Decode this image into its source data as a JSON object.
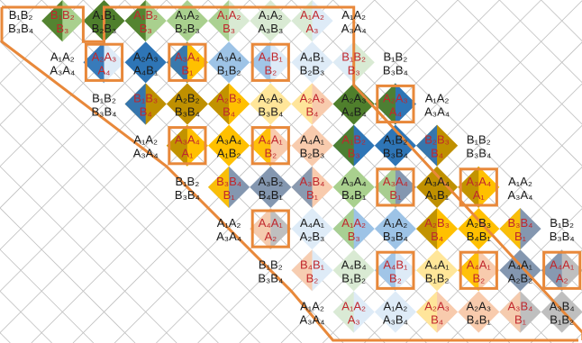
{
  "colors": {
    "black_text": "#1a1a1a",
    "red_text": "#c0272d",
    "highlight_box": "#e8883a",
    "grid_line": "#bfbfbf",
    "fills": {
      "dark_green": "#4f7f2c",
      "light_green": "#a9d08e",
      "pale_green": "#d9ead3",
      "dark_blue": "#2e75b6",
      "light_blue": "#9dc3e6",
      "pale_blue": "#deebf7",
      "olive": "#bf9000",
      "gold": "#ffc000",
      "pale_yellow": "#ffe699",
      "slate": "#8497b0",
      "salmon": "#f8cbad",
      "gray": "#bfbfbf"
    }
  },
  "cells": [
    {
      "c": 0,
      "r": 0,
      "t": "B₁B₂",
      "b": "B₃B₄",
      "tc": "k",
      "bc": "k"
    },
    {
      "c": 1,
      "r": 0,
      "t": "B₁B₂",
      "b": "B₃",
      "tc": "r",
      "bc": "r",
      "f": "light_green",
      "g": "dark_green"
    },
    {
      "c": 2,
      "r": 0,
      "t": "A₁B₁",
      "b": "B₂B₃",
      "tc": "k",
      "bc": "k",
      "f": "dark_green"
    },
    {
      "c": 3,
      "r": 0,
      "t": "A₁B₂",
      "b": "B₃",
      "tc": "r",
      "bc": "r",
      "f": "light_green",
      "g": "dark_green"
    },
    {
      "c": 4,
      "r": 0,
      "t": "A₁A₂",
      "b": "B₂B₃",
      "tc": "k",
      "bc": "k",
      "f": "light_green"
    },
    {
      "c": 5,
      "r": 0,
      "t": "A₁A₂",
      "b": "B₃",
      "tc": "r",
      "bc": "r",
      "f": "pale_green",
      "g": "light_green"
    },
    {
      "c": 6,
      "r": 0,
      "t": "A₁A₂",
      "b": "A₃B₃",
      "tc": "k",
      "bc": "k",
      "f": "pale_green"
    },
    {
      "c": 7,
      "r": 0,
      "t": "A₁A₂",
      "b": "A₃",
      "tc": "r",
      "bc": "r",
      "f": "pale_blue",
      "g": "pale_green"
    },
    {
      "c": 8,
      "r": 0,
      "t": "A₁A₂",
      "b": "A₃A₄",
      "tc": "k",
      "bc": "k"
    },
    {
      "c": 1,
      "r": 1,
      "t": "A₁A₂",
      "b": "A₃A₄",
      "tc": "k",
      "bc": "k"
    },
    {
      "c": 2,
      "r": 1,
      "t": "A₂A₃",
      "b": "A₄",
      "tc": "r",
      "bc": "r",
      "f": "pale_blue",
      "g": "dark_blue",
      "box": 1
    },
    {
      "c": 3,
      "r": 1,
      "t": "A₂A₃",
      "b": "A₄B₁",
      "tc": "k",
      "bc": "k",
      "f": "dark_blue"
    },
    {
      "c": 4,
      "r": 1,
      "t": "A₃A₄",
      "b": "B₁",
      "tc": "r",
      "bc": "r",
      "f": "gold",
      "g": "dark_blue",
      "box": 1
    },
    {
      "c": 5,
      "r": 1,
      "t": "A₃A₄",
      "b": "B₁B₂",
      "tc": "k",
      "bc": "k",
      "f": "light_blue"
    },
    {
      "c": 6,
      "r": 1,
      "t": "A₄B₁",
      "b": "B₂",
      "tc": "r",
      "bc": "r",
      "f": "pale_blue",
      "g": "light_blue",
      "box": 1
    },
    {
      "c": 7,
      "r": 1,
      "t": "A₄B₁",
      "b": "B₂B₃",
      "tc": "k",
      "bc": "k",
      "f": "pale_blue"
    },
    {
      "c": 8,
      "r": 1,
      "t": "B₁B₂",
      "b": "B₃",
      "tc": "r",
      "bc": "r",
      "f": "pale_green",
      "g": "pale_blue"
    },
    {
      "c": 9,
      "r": 1,
      "t": "B₁B₂",
      "b": "B₃B₄",
      "tc": "k",
      "bc": "k"
    },
    {
      "c": 2,
      "r": 2,
      "t": "B₁B₂",
      "b": "B₃B₄",
      "tc": "k",
      "bc": "k"
    },
    {
      "c": 3,
      "r": 2,
      "t": "B₁B₃",
      "b": "B₄",
      "tc": "r",
      "bc": "r",
      "f": "olive",
      "g": "dark_blue"
    },
    {
      "c": 4,
      "r": 2,
      "t": "A₂B₂",
      "b": "B₃B₄",
      "tc": "k",
      "bc": "k",
      "f": "olive"
    },
    {
      "c": 5,
      "r": 2,
      "t": "A₂B₃",
      "b": "B₄",
      "tc": "r",
      "bc": "r",
      "f": "gold",
      "g": "olive"
    },
    {
      "c": 6,
      "r": 2,
      "t": "A₂A₃",
      "b": "B₃B₄",
      "tc": "k",
      "bc": "k",
      "f": "pale_yellow"
    },
    {
      "c": 7,
      "r": 2,
      "t": "A₂A₃",
      "b": "B₄",
      "tc": "r",
      "bc": "r",
      "f": "salmon",
      "g": "pale_yellow"
    },
    {
      "c": 8,
      "r": 2,
      "t": "A₂A₃",
      "b": "A₄B₄",
      "tc": "k",
      "bc": "k",
      "f": "dark_green"
    },
    {
      "c": 9,
      "r": 2,
      "t": "A₂A₃",
      "b": "A₄",
      "tc": "r",
      "bc": "r",
      "f": "dark_blue",
      "g": "dark_green",
      "box": 1
    },
    {
      "c": 10,
      "r": 2,
      "t": "A₁A₂",
      "b": "A₃A₄",
      "tc": "k",
      "bc": "k"
    },
    {
      "c": 3,
      "r": 3,
      "t": "A₁A₂",
      "b": "A₃A₄",
      "tc": "k",
      "bc": "k"
    },
    {
      "c": 4,
      "r": 3,
      "t": "A₃A₄",
      "b": "A₁",
      "tc": "r",
      "bc": "r",
      "f": "gold",
      "g": "olive",
      "box": 1
    },
    {
      "c": 5,
      "r": 3,
      "t": "A₃A₄",
      "b": "A₁B₂",
      "tc": "k",
      "bc": "k",
      "f": "gold"
    },
    {
      "c": 6,
      "r": 3,
      "t": "A₄A₁",
      "b": "B₂",
      "tc": "r",
      "bc": "r",
      "f": "salmon",
      "g": "gold",
      "box": 1
    },
    {
      "c": 7,
      "r": 3,
      "t": "A₄A₁",
      "b": "B₂B₃",
      "tc": "k",
      "bc": "k",
      "f": "salmon"
    },
    {
      "c": 8,
      "r": 3,
      "t": "A₁B₂",
      "b": "B₃",
      "tc": "r",
      "bc": "r",
      "f": "dark_blue",
      "g": "dark_green"
    },
    {
      "c": 9,
      "r": 3,
      "t": "A₁B₂",
      "b": "B₃B₄",
      "tc": "k",
      "bc": "k",
      "f": "dark_blue"
    },
    {
      "c": 10,
      "r": 3,
      "t": "B₂B₃",
      "b": "B₄",
      "tc": "r",
      "bc": "r",
      "f": "olive",
      "g": "dark_blue"
    },
    {
      "c": 11,
      "r": 3,
      "t": "B₁B₂",
      "b": "B₃B₄",
      "tc": "k",
      "bc": "k"
    },
    {
      "c": 4,
      "r": 4,
      "t": "B₁B₂",
      "b": "B₃B₄",
      "tc": "k",
      "bc": "k"
    },
    {
      "c": 5,
      "r": 4,
      "t": "B₃B₄",
      "b": "B₁",
      "tc": "r",
      "bc": "r",
      "f": "slate",
      "g": "gold"
    },
    {
      "c": 6,
      "r": 4,
      "t": "A₃B₂",
      "b": "B₄B₁",
      "tc": "k",
      "bc": "k",
      "f": "slate"
    },
    {
      "c": 7,
      "r": 4,
      "t": "A₃B₄",
      "b": "B₁",
      "tc": "r",
      "bc": "r",
      "f": "salmon",
      "g": "slate"
    },
    {
      "c": 8,
      "r": 4,
      "t": "A₃A₄",
      "b": "B₄B₁",
      "tc": "k",
      "bc": "k",
      "f": "light_green"
    },
    {
      "c": 9,
      "r": 4,
      "t": "A₃A₄",
      "b": "B₁",
      "tc": "r",
      "bc": "r",
      "f": "slate",
      "g": "light_green",
      "box": 1
    },
    {
      "c": 10,
      "r": 4,
      "t": "A₃A₄",
      "b": "A₁B₁",
      "tc": "k",
      "bc": "k",
      "f": "olive"
    },
    {
      "c": 11,
      "r": 4,
      "t": "A₃A₄",
      "b": "A₁",
      "tc": "r",
      "bc": "r",
      "f": "gold",
      "g": "olive",
      "box": 1
    },
    {
      "c": 12,
      "r": 4,
      "t": "A₁A₂",
      "b": "A₃A₄",
      "tc": "k",
      "bc": "k"
    },
    {
      "c": 5,
      "r": 5,
      "t": "A₁A₂",
      "b": "A₃A₄",
      "tc": "k",
      "bc": "k"
    },
    {
      "c": 6,
      "r": 5,
      "t": "A₄A₁",
      "b": "A₂",
      "tc": "r",
      "bc": "r",
      "f": "gray",
      "g": "salmon",
      "box": 1
    },
    {
      "c": 7,
      "r": 5,
      "t": "A₄A₁",
      "b": "A₂B₃",
      "tc": "k",
      "bc": "k",
      "f": "pale_blue"
    },
    {
      "c": 8,
      "r": 5,
      "t": "A₁A₂",
      "b": "B₃",
      "tc": "r",
      "bc": "r",
      "f": "light_blue",
      "g": "light_green"
    },
    {
      "c": 9,
      "r": 5,
      "t": "A₁A₂",
      "b": "B₃B₄",
      "tc": "k",
      "bc": "k",
      "f": "light_blue"
    },
    {
      "c": 10,
      "r": 5,
      "t": "A₂B₃",
      "b": "B₄",
      "tc": "r",
      "bc": "r",
      "f": "gold",
      "g": "olive"
    },
    {
      "c": 11,
      "r": 5,
      "t": "A₂B₃",
      "b": "B₄B₁",
      "tc": "k",
      "bc": "k",
      "f": "gold"
    },
    {
      "c": 12,
      "r": 5,
      "t": "B₃B₄",
      "b": "B₁",
      "tc": "r",
      "bc": "r",
      "f": "slate",
      "g": "gold"
    },
    {
      "c": 13,
      "r": 5,
      "t": "B₁B₂",
      "b": "B₃B₄",
      "tc": "k",
      "bc": "k"
    },
    {
      "c": 6,
      "r": 6,
      "t": "B₁B₂",
      "b": "B₃B₄",
      "tc": "k",
      "bc": "k"
    },
    {
      "c": 7,
      "r": 6,
      "t": "B₄B₁",
      "b": "B₂",
      "tc": "r",
      "bc": "r",
      "f": "pale_blue",
      "g": "salmon"
    },
    {
      "c": 8,
      "r": 6,
      "t": "A₄B₄",
      "b": "B₁B₂",
      "tc": "k",
      "bc": "k",
      "f": "pale_green"
    },
    {
      "c": 9,
      "r": 6,
      "t": "A₄B₁",
      "b": "B₂",
      "tc": "r",
      "bc": "r",
      "f": "pale_blue",
      "g": "light_blue",
      "box": 1
    },
    {
      "c": 10,
      "r": 6,
      "t": "A₄A₁",
      "b": "B₁B₂",
      "tc": "k",
      "bc": "k",
      "f": "pale_yellow"
    },
    {
      "c": 11,
      "r": 6,
      "t": "A₄A₁",
      "b": "B₂",
      "tc": "r",
      "bc": "r",
      "f": "salmon",
      "g": "gold",
      "box": 1
    },
    {
      "c": 12,
      "r": 6,
      "t": "A₄A₁",
      "b": "A₂B₂",
      "tc": "k",
      "bc": "k",
      "f": "slate"
    },
    {
      "c": 13,
      "r": 6,
      "t": "A₄A₁",
      "b": "A₂",
      "tc": "r",
      "bc": "r",
      "f": "gray",
      "g": "slate",
      "box": 1
    },
    {
      "c": 7,
      "r": 7,
      "t": "A₁A₂",
      "b": "A₃A₄",
      "tc": "k",
      "bc": "k"
    },
    {
      "c": 8,
      "r": 7,
      "t": "A₁A₂",
      "b": "A₃",
      "tc": "r",
      "bc": "r",
      "f": "pale_blue",
      "g": "pale_green"
    },
    {
      "c": 9,
      "r": 7,
      "t": "A₁A₂",
      "b": "A₃B₄",
      "tc": "k",
      "bc": "k",
      "f": "pale_blue"
    },
    {
      "c": 10,
      "r": 7,
      "t": "A₂A₃",
      "b": "B₄",
      "tc": "r",
      "bc": "r",
      "f": "salmon",
      "g": "pale_yellow"
    },
    {
      "c": 11,
      "r": 7,
      "t": "A₂A₃",
      "b": "B₄B₁",
      "tc": "k",
      "bc": "k",
      "f": "salmon"
    },
    {
      "c": 12,
      "r": 7,
      "t": "A₃B₄",
      "b": "B₁",
      "tc": "r",
      "bc": "r",
      "f": "gray",
      "g": "salmon"
    },
    {
      "c": 13,
      "r": 7,
      "t": "A₃B₄",
      "b": "B₁B₂",
      "tc": "k",
      "bc": "k",
      "f": "gray"
    }
  ]
}
